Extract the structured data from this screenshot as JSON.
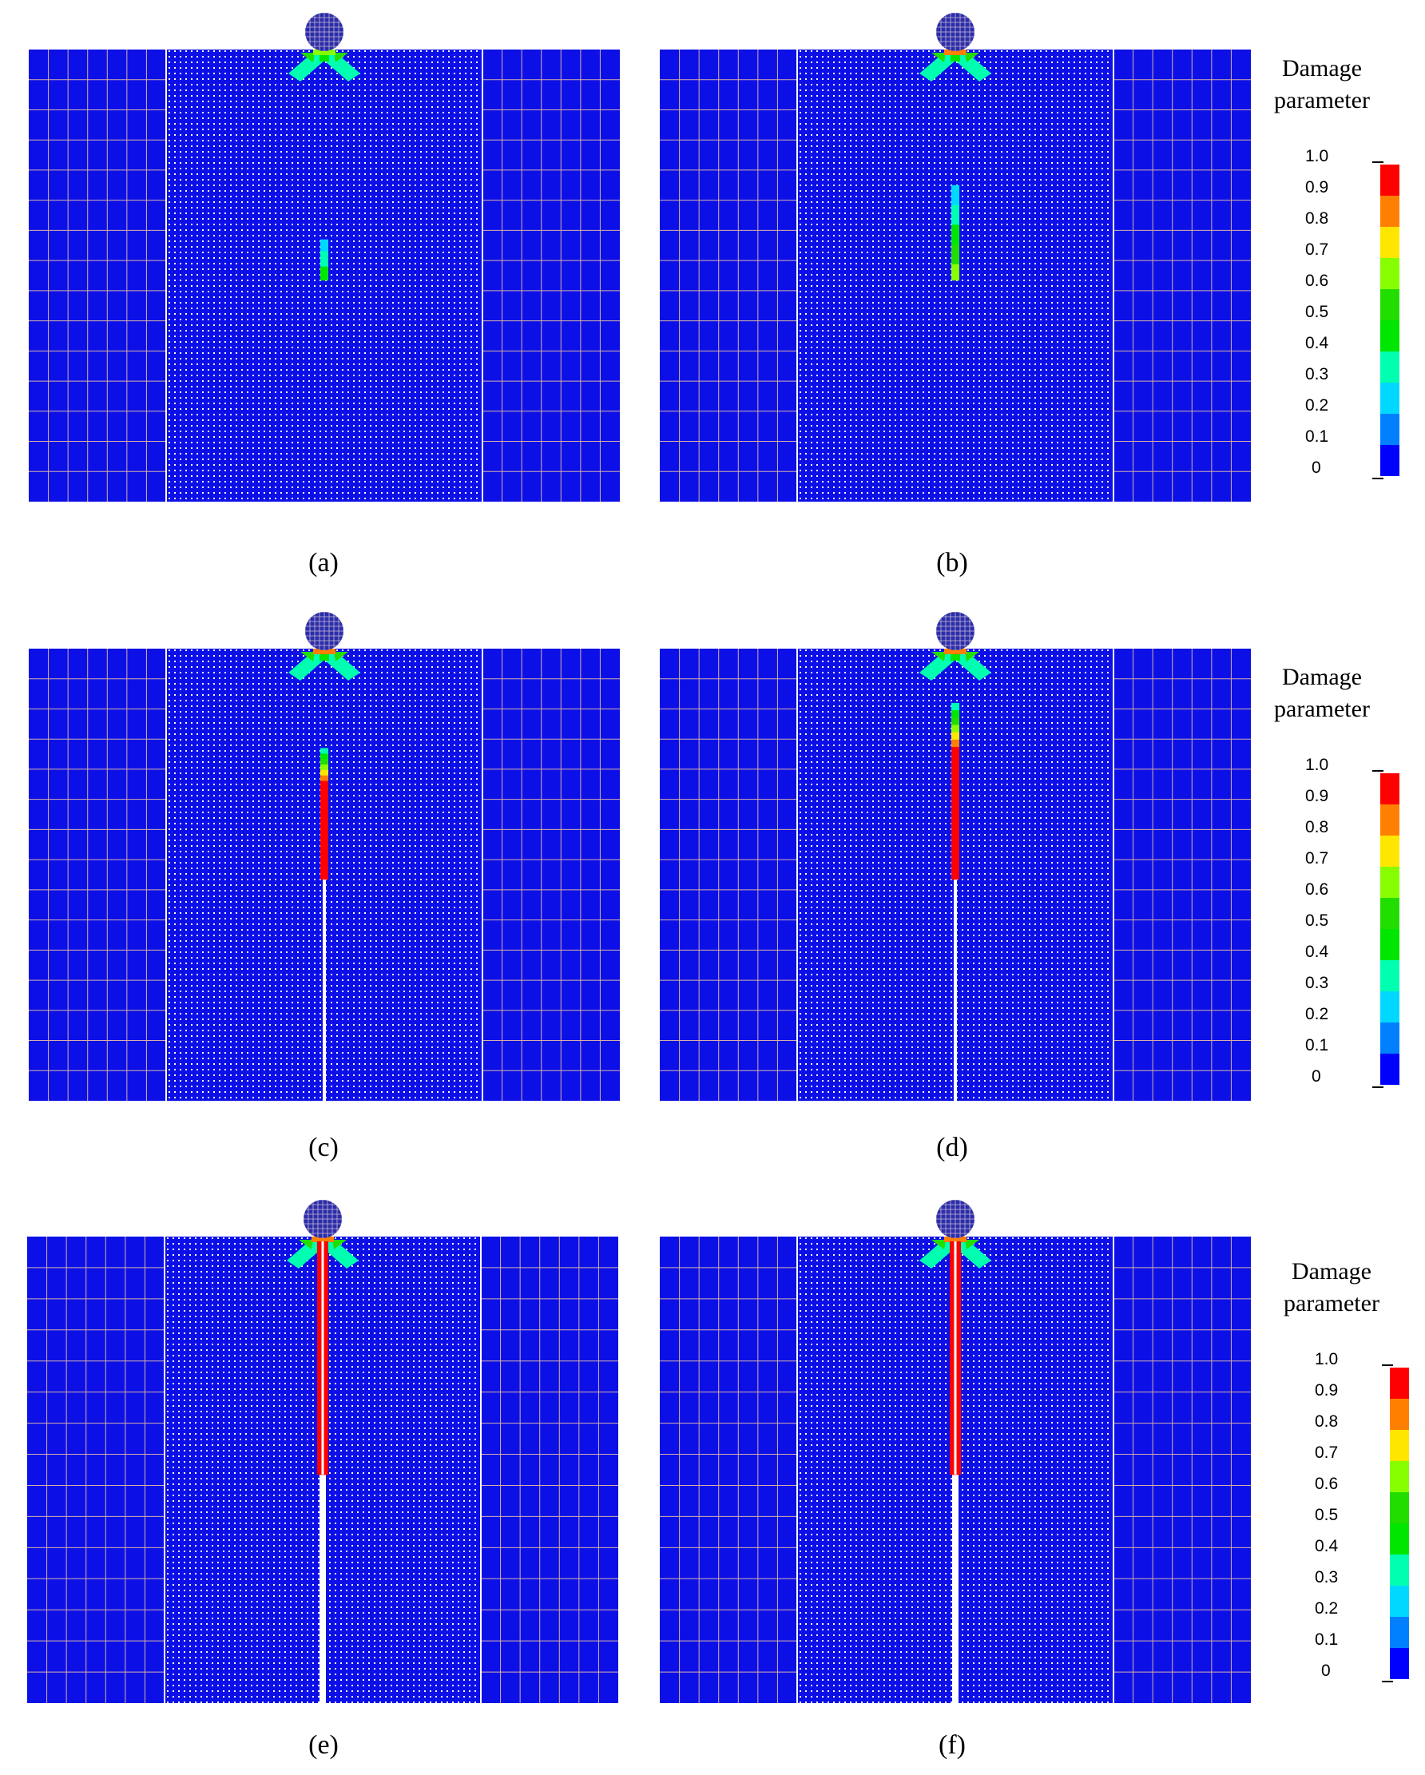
{
  "colors": {
    "matrix": "#0d10e6",
    "fine_grid": "#ffffff",
    "coarse_grid": "#d4b0a8",
    "crack_open": "#ffffff",
    "impactor": "#2b2ea8",
    "impactor_grid": "#c9b8d8",
    "damage_scale": [
      "#0000ff",
      "#0080ff",
      "#00d8ff",
      "#00ffb0",
      "#00e600",
      "#22dd00",
      "#88ff00",
      "#ffe600",
      "#ff8000",
      "#ff0000"
    ]
  },
  "panels": [
    {
      "caption": "(a)",
      "damage_tip": 0.5,
      "crack_top_frac": 0.42,
      "crack_bottom_frac": 0.51,
      "open_crack_from_frac": null
    },
    {
      "caption": "(b)",
      "damage_tip": 0.7,
      "crack_top_frac": 0.3,
      "crack_bottom_frac": 0.51,
      "open_crack_from_frac": null
    },
    {
      "caption": "(c)",
      "damage_tip": 1.0,
      "crack_top_frac": 0.22,
      "crack_bottom_frac": 0.51,
      "open_crack_from_frac": 0.51
    },
    {
      "caption": "(d)",
      "damage_tip": 1.0,
      "crack_top_frac": 0.12,
      "crack_bottom_frac": 0.51,
      "open_crack_from_frac": 0.51
    },
    {
      "caption": "(e)",
      "damage_tip": 1.0,
      "crack_top_frac": 0.01,
      "crack_bottom_frac": 0.51,
      "open_crack_from_frac": 0.51
    },
    {
      "caption": "(f)",
      "damage_tip": 1.0,
      "crack_top_frac": 0.01,
      "crack_bottom_frac": 0.51,
      "open_crack_from_frac": 0.51
    }
  ],
  "legends": [
    {
      "title_line1": "Damage",
      "title_line2": "parameter",
      "ticks": [
        "1.0",
        "0.9",
        "0.8",
        "0.7",
        "0.6",
        "0.5",
        "0.4",
        "0.3",
        "0.2",
        "0.1",
        "0"
      ]
    },
    {
      "title_line1": "Damage",
      "title_line2": "parameter",
      "ticks": [
        "1.0",
        "0.9",
        "0.8",
        "0.7",
        "0.6",
        "0.5",
        "0.4",
        "0.3",
        "0.2",
        "0.1",
        "0"
      ]
    },
    {
      "title_line1": "Damage",
      "title_line2": "parameter",
      "ticks": [
        "1.0",
        "0.9",
        "0.8",
        "0.7",
        "0.6",
        "0.5",
        "0.4",
        "0.3",
        "0.2",
        "0.1",
        "0"
      ]
    }
  ]
}
